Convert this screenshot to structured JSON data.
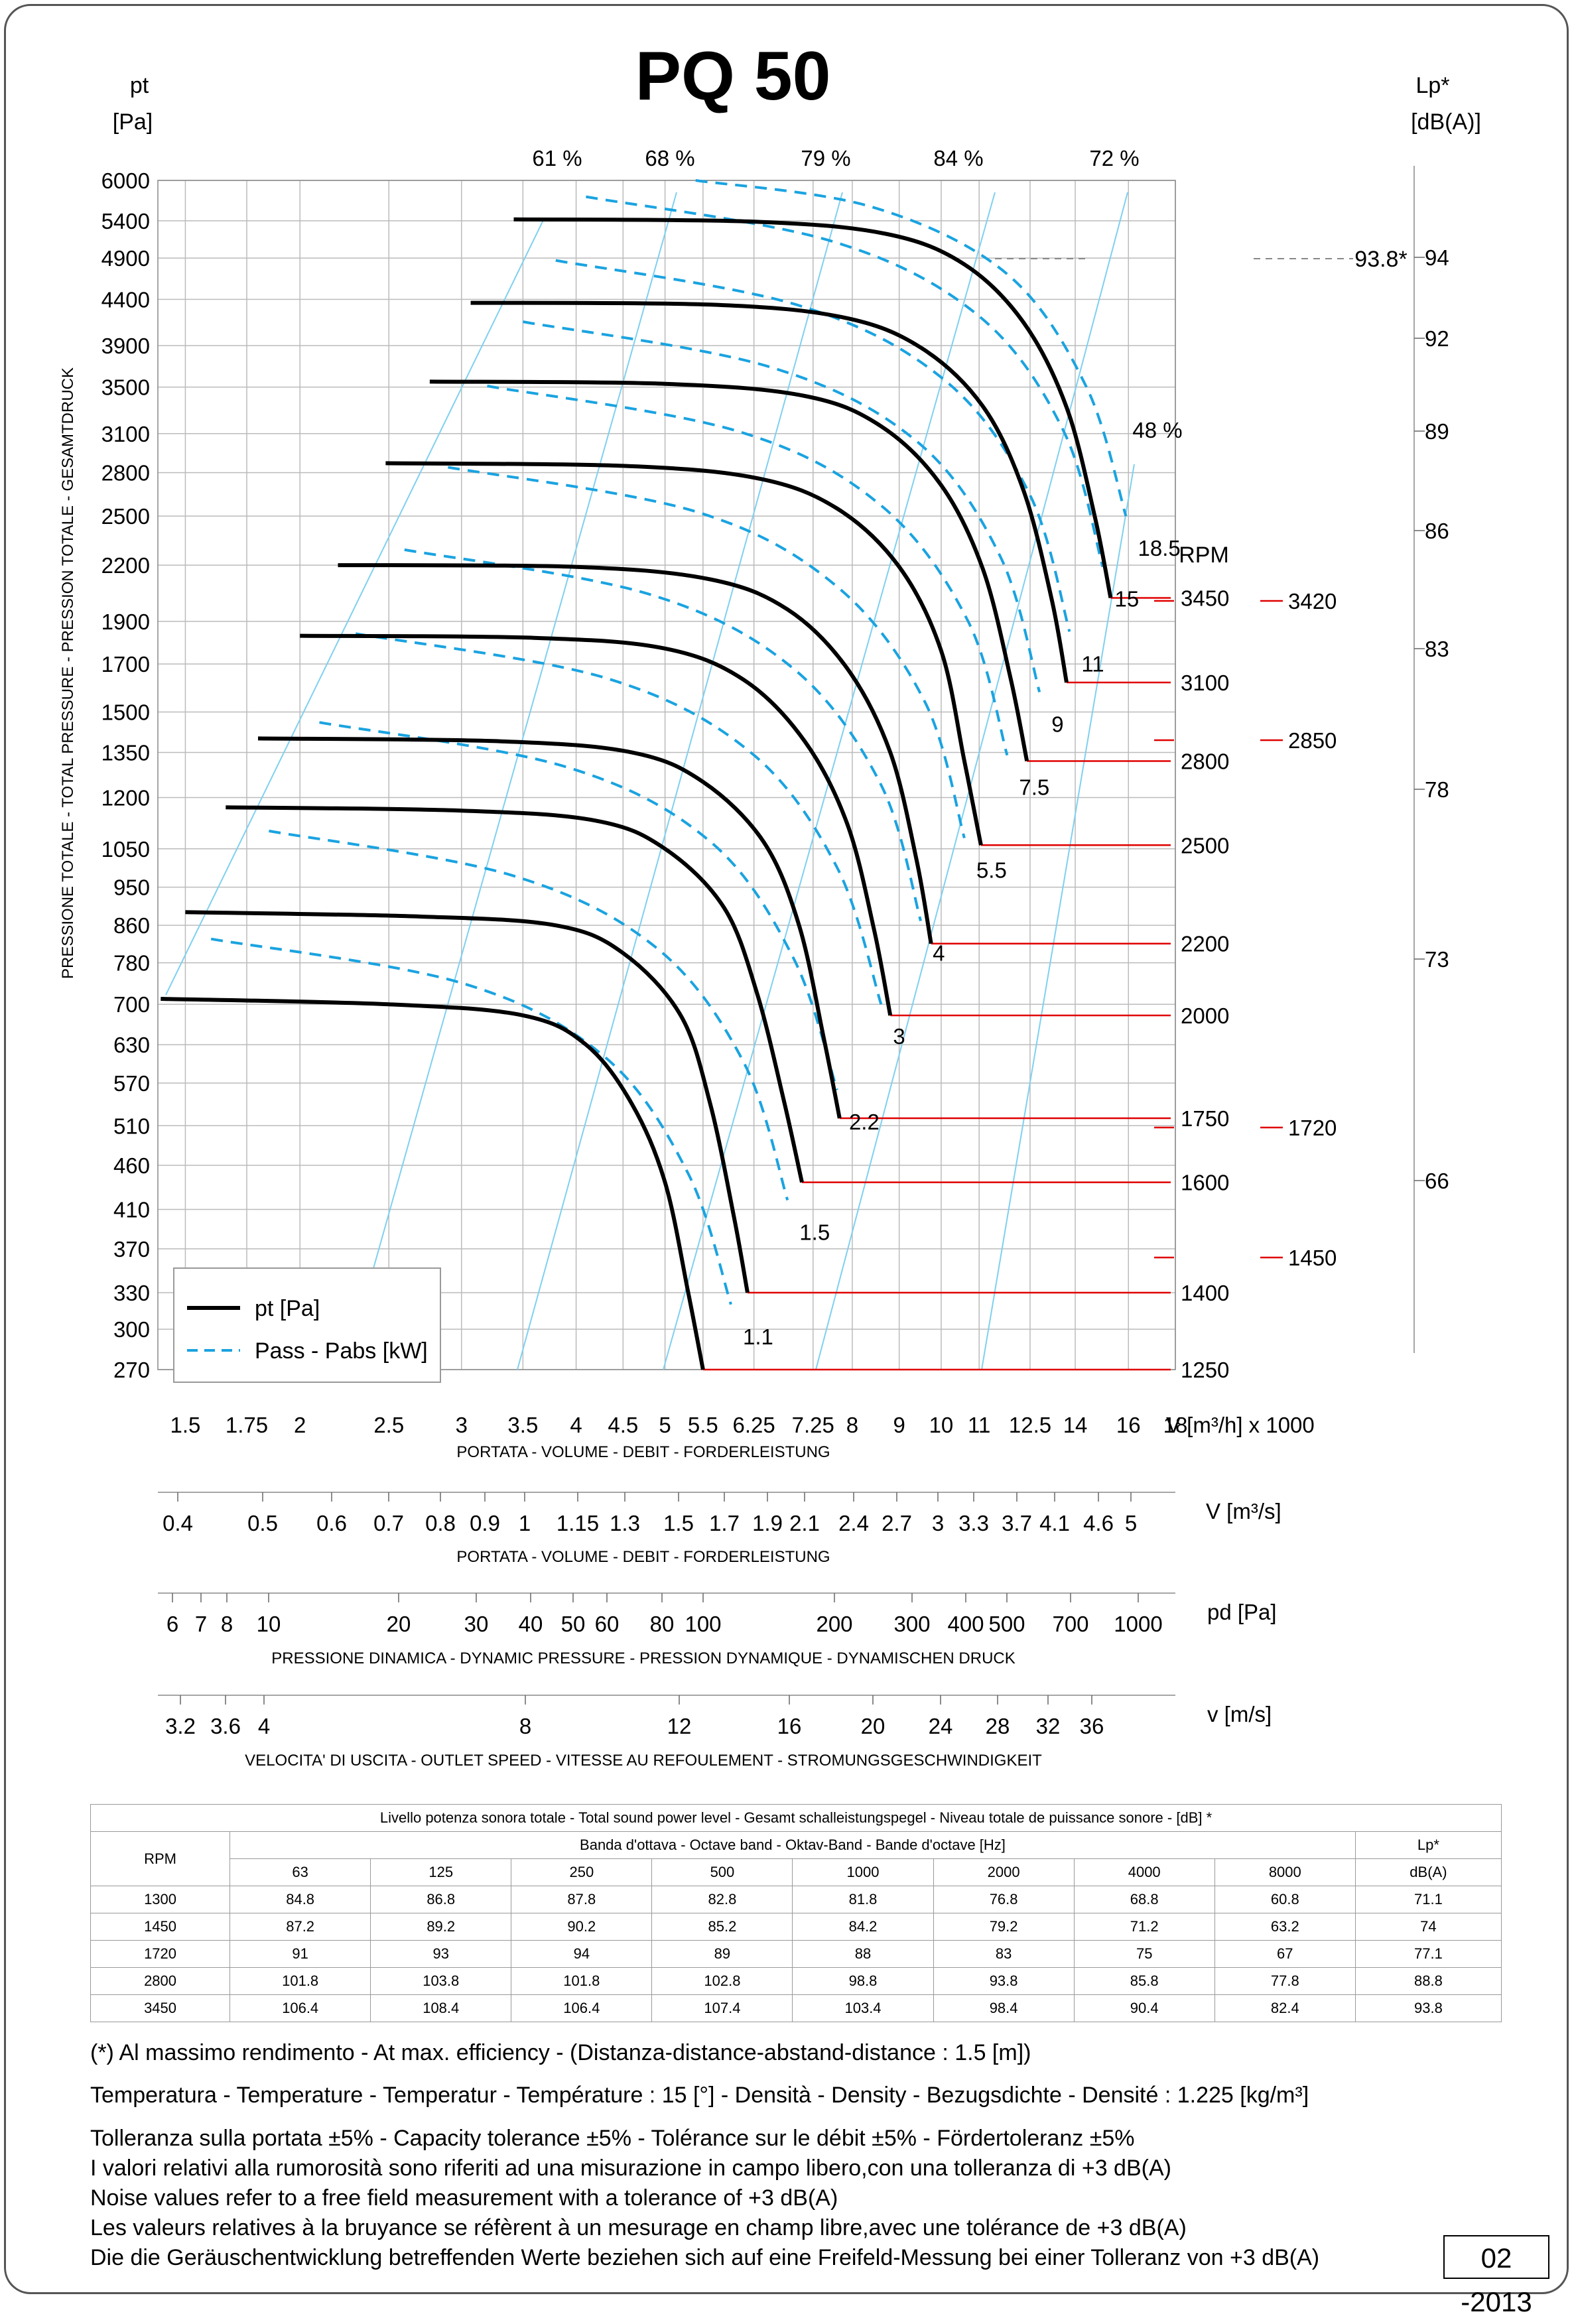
{
  "title": "PQ 50",
  "left_axis": {
    "unit_line1": "pt",
    "unit_line2": "[Pa]",
    "label": "PRESSIONE TOTALE - TOTAL PRESSURE - PRESSION TOTALE - GESAMTDRUCK",
    "ticks": [
      6000,
      5400,
      4900,
      4400,
      3900,
      3500,
      3100,
      2800,
      2500,
      2200,
      1900,
      1700,
      1500,
      1350,
      1200,
      1050,
      950,
      860,
      780,
      700,
      630,
      570,
      510,
      460,
      410,
      370,
      330,
      300,
      270
    ]
  },
  "right_axis": {
    "unit_line1": "Lp*",
    "unit_line2": "[dB(A)]",
    "ticks": [
      94,
      92,
      89,
      86,
      83,
      78,
      73,
      66
    ],
    "max_marker": "93.8*"
  },
  "rpm_label": "RPM",
  "x_axis_flow_h": {
    "unit": "V [m³/h]  x 1000",
    "label": "PORTATA - VOLUME - DEBIT - FORDERLEISTUNG",
    "ticks": [
      "1.5",
      "1.75",
      "2",
      "2.5",
      "3",
      "3.5",
      "4",
      "4.5",
      "5",
      "5.5",
      "6.25",
      "7.25",
      "8",
      "9",
      "10",
      "11",
      "12.5",
      "14",
      "16",
      "18"
    ]
  },
  "x_axis_flow_s": {
    "unit": "V  [m³/s]",
    "label": "PORTATA - VOLUME - DEBIT - FORDERLEISTUNG",
    "ticks": [
      "0.4",
      "0.5",
      "0.6",
      "0.7",
      "0.8",
      "0.9",
      "1",
      "1.15",
      "1.3",
      "1.5",
      "1.7",
      "1.9",
      "2.1",
      "2.4",
      "2.7",
      "3",
      "3.3",
      "3.7",
      "4.1",
      "4.6",
      "5"
    ]
  },
  "x_axis_pd": {
    "unit": "pd  [Pa]",
    "label": "PRESSIONE DINAMICA - DYNAMIC PRESSURE - PRESSION DYNAMIQUE - DYNAMISCHEN DRUCK",
    "ticks": [
      "6",
      "7",
      "8",
      "10",
      "20",
      "30",
      "40",
      "50",
      "60",
      "80",
      "100",
      "200",
      "300",
      "400",
      "500",
      "700",
      "1000"
    ]
  },
  "x_axis_speed": {
    "unit": "v  [m/s]",
    "label": "VELOCITA' DI USCITA - OUTLET SPEED - VITESSE AU REFOULEMENT - STROMUNGSGESCHWINDIGKEIT",
    "ticks": [
      "3.2",
      "3.6",
      "4",
      "8",
      "12",
      "16",
      "20",
      "24",
      "28",
      "32",
      "36"
    ]
  },
  "efficiency_labels": [
    "61 %",
    "68 %",
    "79 %",
    "84 %",
    "72 %",
    "48 %"
  ],
  "legend": {
    "pt": "pt [Pa]",
    "power": "Pass - Pabs [kW]"
  },
  "chart_data": {
    "type": "line",
    "x_unit": "m³/h x 1000",
    "y_unit": "Pa",
    "x_scale": "log",
    "y_scale": "log",
    "xlim": [
      1.4,
      18
    ],
    "ylim": [
      270,
      6000
    ],
    "pressure_curves": [
      {
        "rpm": 1250,
        "x": [
          1.41,
          2.5,
          3.5,
          4.1,
          4.6,
          5.0,
          5.3,
          5.5
        ],
        "y": [
          710,
          700,
          680,
          630,
          540,
          440,
          330,
          270
        ]
      },
      {
        "rpm": 1400,
        "x": [
          1.5,
          2.7,
          3.8,
          4.5,
          5.2,
          5.6,
          5.95,
          6.15
        ],
        "y": [
          890,
          880,
          860,
          800,
          680,
          540,
          400,
          330
        ]
      },
      {
        "rpm": 1600,
        "x": [
          1.66,
          3.0,
          4.2,
          5.0,
          5.8,
          6.3,
          6.75,
          7.05
        ],
        "y": [
          1170,
          1160,
          1130,
          1050,
          900,
          720,
          540,
          440
        ]
      },
      {
        "rpm": 1750,
        "x": [
          1.8,
          3.3,
          4.6,
          5.5,
          6.4,
          7.0,
          7.45,
          7.75
        ],
        "y": [
          1400,
          1390,
          1350,
          1250,
          1070,
          860,
          640,
          520
        ]
      },
      {
        "rpm": 2000,
        "x": [
          2.0,
          3.6,
          5.0,
          6.1,
          7.1,
          7.9,
          8.45,
          8.8
        ],
        "y": [
          1830,
          1820,
          1770,
          1630,
          1390,
          1120,
          850,
          680
        ]
      },
      {
        "rpm": 2200,
        "x": [
          2.2,
          4.0,
          5.6,
          6.8,
          7.9,
          8.8,
          9.4,
          9.75
        ],
        "y": [
          2200,
          2190,
          2120,
          1960,
          1680,
          1350,
          1020,
          820
        ]
      },
      {
        "rpm": 2500,
        "x": [
          2.48,
          4.5,
          6.3,
          7.7,
          9.0,
          10.0,
          10.6,
          11.05
        ],
        "y": [
          2870,
          2850,
          2760,
          2550,
          2190,
          1760,
          1320,
          1060
        ]
      },
      {
        "rpm": 2800,
        "x": [
          2.77,
          5.0,
          7.1,
          8.6,
          10.0,
          11.1,
          11.9,
          12.4
        ],
        "y": [
          3550,
          3530,
          3420,
          3160,
          2710,
          2180,
          1640,
          1320
        ]
      },
      {
        "rpm": 3100,
        "x": [
          3.07,
          5.6,
          7.8,
          9.5,
          11.1,
          12.3,
          13.2,
          13.7
        ],
        "y": [
          4360,
          4340,
          4200,
          3880,
          3330,
          2670,
          2010,
          1620
        ]
      },
      {
        "rpm": 3450,
        "x": [
          3.42,
          6.2,
          8.7,
          10.6,
          12.3,
          13.7,
          14.7,
          15.3
        ],
        "y": [
          5420,
          5390,
          5220,
          4820,
          4140,
          3320,
          2500,
          2020
        ]
      }
    ],
    "power_curves": [
      {
        "kw": "1.1",
        "x": [
          1.6,
          3.0,
          4.3,
          5.3,
          5.9
        ],
        "y": [
          830,
          740,
          610,
          450,
          320
        ]
      },
      {
        "kw": "1.5",
        "x": [
          1.85,
          3.4,
          4.9,
          6.1,
          6.8
        ],
        "y": [
          1100,
          980,
          810,
          600,
          420
        ]
      },
      {
        "kw": "2.2",
        "x": [
          2.1,
          3.9,
          5.6,
          6.9,
          7.7
        ],
        "y": [
          1460,
          1300,
          1070,
          790,
          560
        ]
      },
      {
        "kw": "3",
        "x": [
          2.3,
          4.3,
          6.2,
          7.7,
          8.6
        ],
        "y": [
          1840,
          1640,
          1350,
          1000,
          700
        ]
      },
      {
        "kw": "4",
        "x": [
          2.6,
          4.8,
          6.9,
          8.6,
          9.5
        ],
        "y": [
          2290,
          2040,
          1680,
          1240,
          870
        ]
      },
      {
        "kw": "5.5",
        "x": [
          2.9,
          5.4,
          7.7,
          9.6,
          10.6
        ],
        "y": [
          2840,
          2530,
          2080,
          1540,
          1080
        ]
      },
      {
        "kw": "7.5",
        "x": [
          3.2,
          6.0,
          8.6,
          10.7,
          11.8
        ],
        "y": [
          3510,
          3120,
          2570,
          1900,
          1340
        ]
      },
      {
        "kw": "9",
        "x": [
          3.5,
          6.5,
          9.4,
          11.6,
          12.8
        ],
        "y": [
          4150,
          3690,
          3040,
          2250,
          1580
        ]
      },
      {
        "kw": "11",
        "x": [
          3.8,
          7.0,
          10.1,
          12.5,
          13.8
        ],
        "y": [
          4870,
          4330,
          3560,
          2640,
          1850
        ]
      },
      {
        "kw": "15",
        "x": [
          4.1,
          7.6,
          11.0,
          13.6,
          15.0
        ],
        "y": [
          5750,
          5120,
          4210,
          3120,
          2190
        ]
      },
      {
        "kw": "18.5",
        "x": [
          5.4,
          8.4,
          11.8,
          14.4,
          15.9
        ],
        "y": [
          6000,
          5600,
          4700,
          3500,
          2500
        ]
      }
    ],
    "efficiency_lines": [
      "61 %",
      "68 %",
      "79 %",
      "84 %",
      "72 %",
      "48 %"
    ],
    "rpm_markers_right": [
      3420,
      2850,
      1720,
      1450
    ]
  },
  "sound_table": {
    "title": "Livello potenza sonora totale - Total sound power level - Gesamt schalleistungspegel - Niveau totale de puissance sonore - [dB]   *",
    "band_header": "Banda d'ottava - Octave band - Oktav-Band - Bande d'octave [Hz]",
    "rpm_header": "RPM",
    "lp_header_1": "Lp*",
    "lp_header_2": "dB(A)",
    "bands": [
      "63",
      "125",
      "250",
      "500",
      "1000",
      "2000",
      "4000",
      "8000"
    ],
    "rows": [
      {
        "rpm": "1300",
        "values": [
          "84.8",
          "86.8",
          "87.8",
          "82.8",
          "81.8",
          "76.8",
          "68.8",
          "60.8"
        ],
        "lp": "71.1"
      },
      {
        "rpm": "1450",
        "values": [
          "87.2",
          "89.2",
          "90.2",
          "85.2",
          "84.2",
          "79.2",
          "71.2",
          "63.2"
        ],
        "lp": "74"
      },
      {
        "rpm": "1720",
        "values": [
          "91",
          "93",
          "94",
          "89",
          "88",
          "83",
          "75",
          "67"
        ],
        "lp": "77.1"
      },
      {
        "rpm": "2800",
        "values": [
          "101.8",
          "103.8",
          "101.8",
          "102.8",
          "98.8",
          "93.8",
          "85.8",
          "77.8"
        ],
        "lp": "88.8"
      },
      {
        "rpm": "3450",
        "values": [
          "106.4",
          "108.4",
          "106.4",
          "107.4",
          "103.4",
          "98.4",
          "90.4",
          "82.4"
        ],
        "lp": "93.8"
      }
    ]
  },
  "notes": {
    "max_eff": "(*) Al massimo rendimento - At max. efficiency - (Distanza-distance-abstand-distance : 1.5 [m])",
    "temperature": "Temperatura - Temperature - Temperatur - Température : 15 [°]  -  Densità - Density - Bezugsdichte - Densité : 1.225 [kg/m³]",
    "tolerance": "Tolleranza sulla portata  ±5% - Capacity tolerance ±5% - Tolérance sur le débit ±5% - Fördertoleranz ±5%",
    "noise_it": "I valori relativi alla rumorosità sono riferiti ad una misurazione in campo libero,con una tolleranza di +3 dB(A)",
    "noise_en": "Noise values refer to a free field measurement with a tolerance of +3 dB(A)",
    "noise_fr": "Les valeurs relatives à la bruyance se réfèrent à un mesurage en champ libre,avec une tolérance de +3 dB(A)",
    "noise_de": "Die die Geräuschentwicklung betreffenden Werte beziehen sich auf eine Freifeld-Messung bei einer Tolleranz von +3 dB(A)"
  },
  "date": "02 -2013",
  "colors": {
    "pressure": "#000000",
    "power": "#1aa3e0",
    "rpm": "#e00000",
    "grid": "#b0b0b0",
    "eff": "#7fd0f0"
  }
}
